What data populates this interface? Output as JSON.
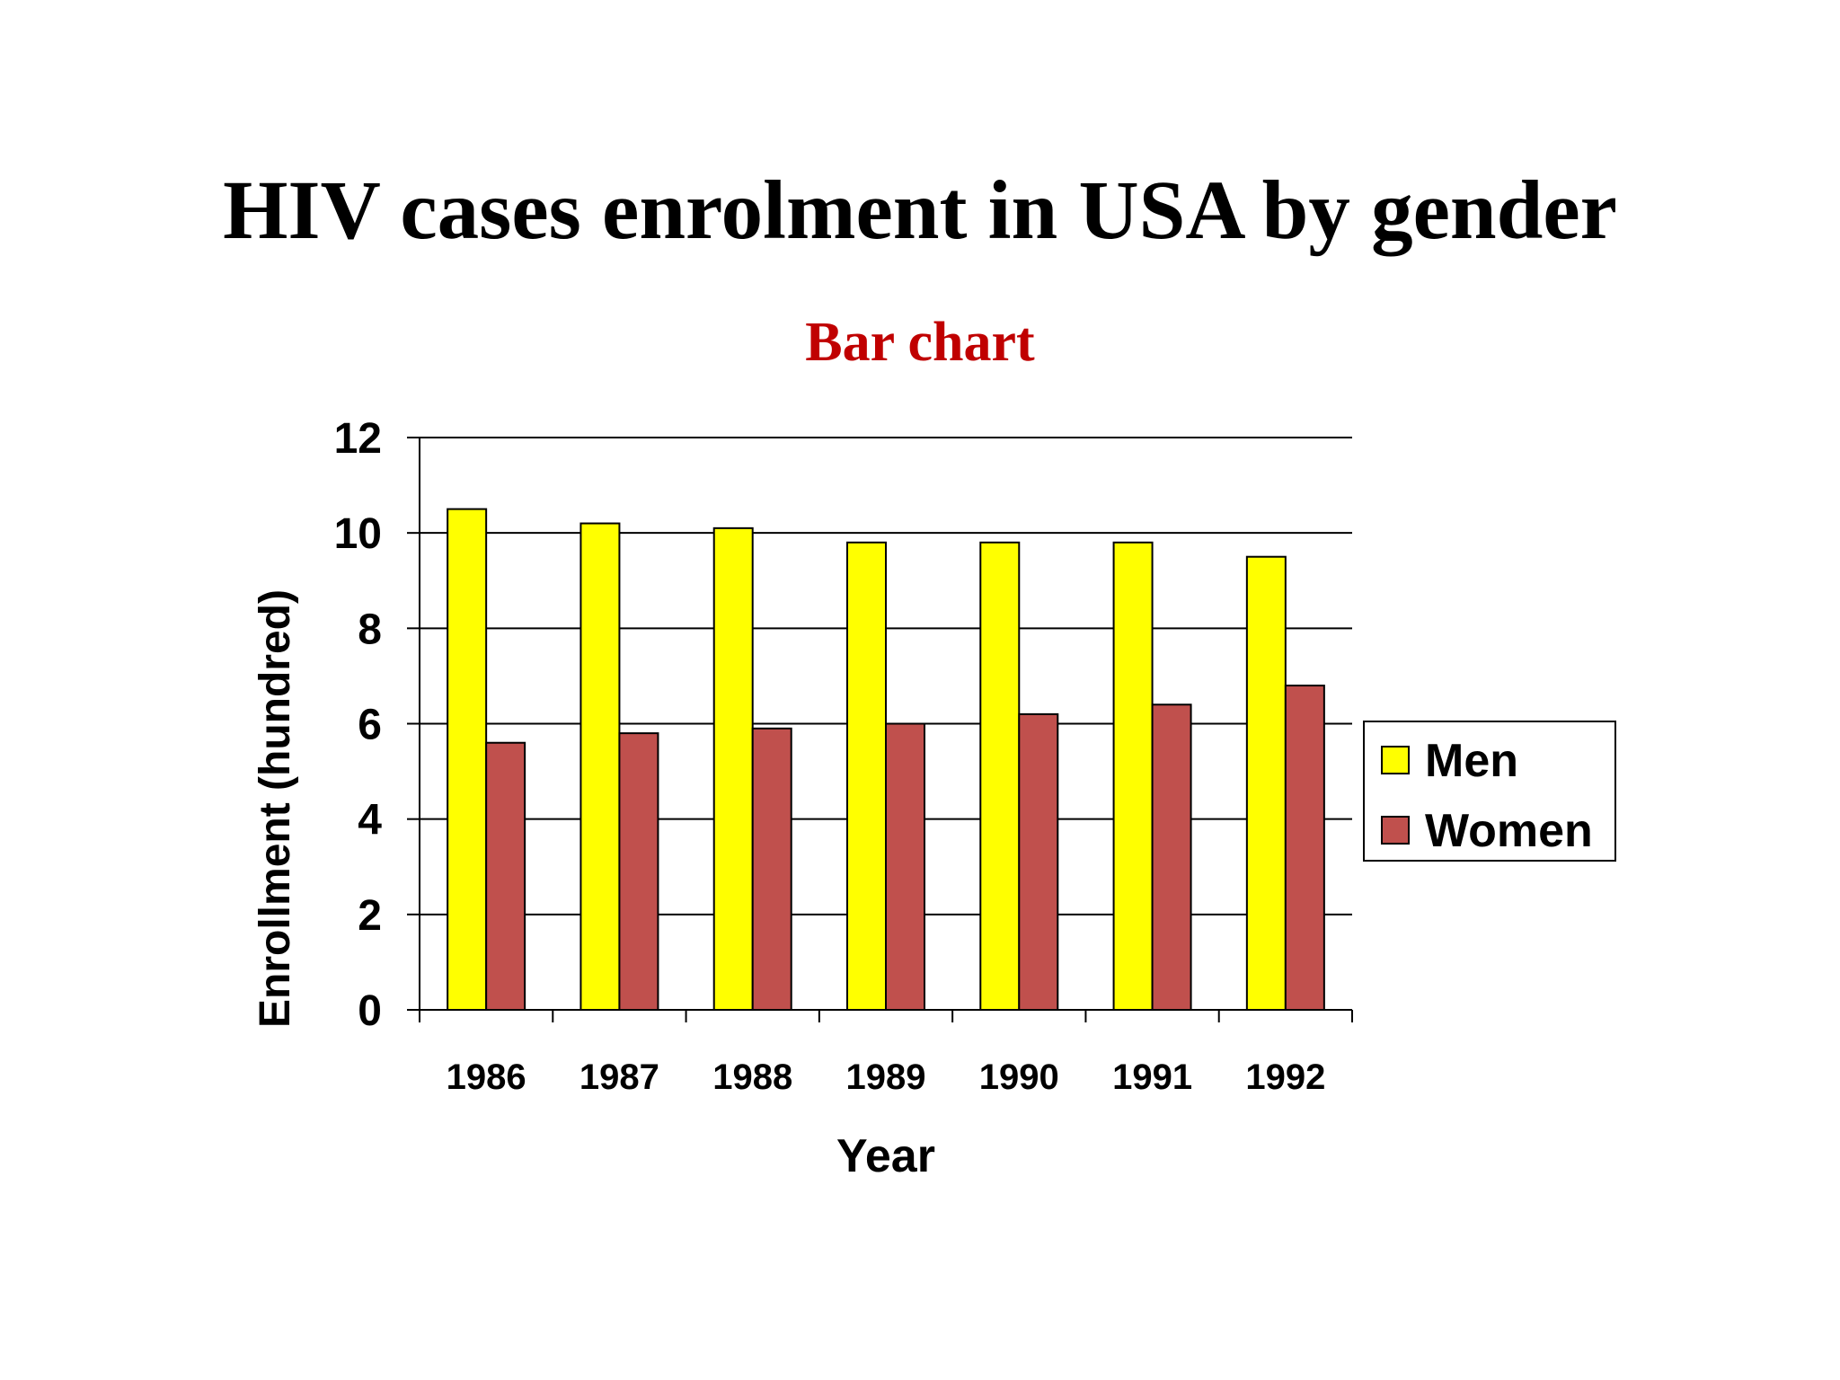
{
  "title": "HIV cases enrolment in USA by gender",
  "subtitle": "Bar chart",
  "colors": {
    "subtitle": "#c00000",
    "men": "#ffff00",
    "women": "#c0504d",
    "axis": "#000000"
  },
  "chart_data": {
    "type": "bar",
    "categories": [
      "1986",
      "1987",
      "1988",
      "1989",
      "1990",
      "1991",
      "1992"
    ],
    "series": [
      {
        "name": "Men",
        "values": [
          10.5,
          10.2,
          10.1,
          9.8,
          9.8,
          9.8,
          9.5
        ]
      },
      {
        "name": "Women",
        "values": [
          5.6,
          5.8,
          5.9,
          6.0,
          6.2,
          6.4,
          6.8
        ]
      }
    ],
    "xlabel": "Year",
    "ylabel": "Enrollment (hundred)",
    "ylim": [
      0,
      12
    ],
    "yticks": [
      "0",
      "2",
      "4",
      "6",
      "8",
      "10",
      "12"
    ],
    "grid": true,
    "legend": "right"
  }
}
